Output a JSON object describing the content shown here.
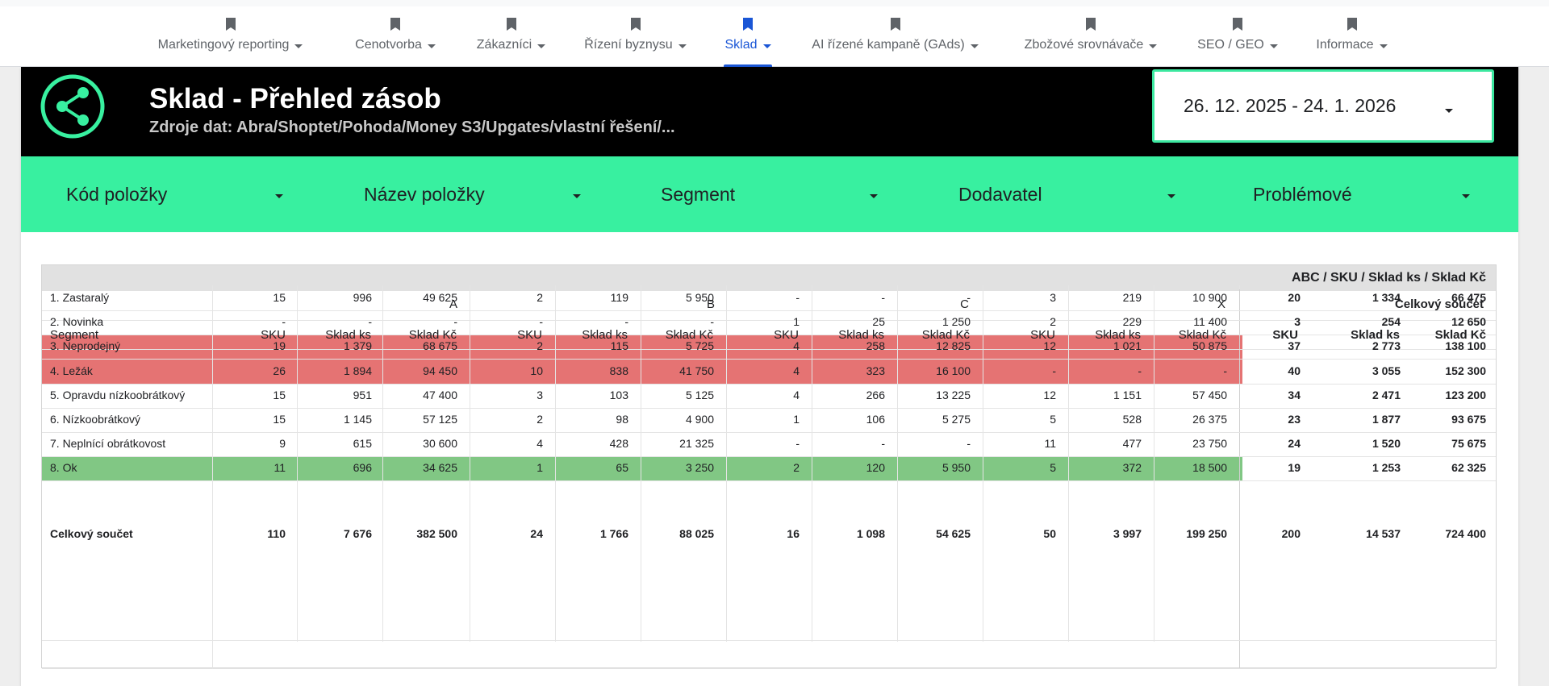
{
  "nav": {
    "items": [
      {
        "label": "Marketingový reporting"
      },
      {
        "label": "Cenotvorba"
      },
      {
        "label": "Zákazníci"
      },
      {
        "label": "Řízení byznysu"
      },
      {
        "label": "Sklad",
        "active": true
      },
      {
        "label": "AI řízené kampaně (GAds)"
      },
      {
        "label": "Zbožové srovnávače"
      },
      {
        "label": "SEO / GEO"
      },
      {
        "label": "Informace"
      }
    ]
  },
  "header": {
    "title": "Sklad - Přehled zásob",
    "subtitle": "Zdroje dat: Abra/Shoptet/Pohoda/Money S3/Upgates/vlastní řešení/...",
    "date_range": "26. 12. 2025 - 24. 1. 2026"
  },
  "filters": [
    {
      "label": "Kód položky"
    },
    {
      "label": "Název položky"
    },
    {
      "label": "Segment"
    },
    {
      "label": "Dodavatel"
    },
    {
      "label": "Problémové"
    }
  ],
  "colors": {
    "accent_green": "#38f0a0",
    "nav_active": "#1a56d6",
    "row_problem": "#e57373",
    "row_ok": "#81c784"
  },
  "table": {
    "title": "ABC / SKU / Sklad ks / Sklad Kč",
    "groups": [
      "A",
      "B",
      "C",
      "X",
      "Celkový součet"
    ],
    "row_header": "Segment",
    "sub_headers": [
      "SKU",
      "Sklad ks",
      "Sklad Kč"
    ],
    "rows": [
      {
        "segment": "1. Zastaralý",
        "highlight": "none",
        "values": [
          "15",
          "996",
          "49 625",
          "2",
          "119",
          "5 950",
          "-",
          "-",
          "-",
          "3",
          "219",
          "10 900"
        ],
        "totals": [
          "20",
          "1 334",
          "66 475"
        ]
      },
      {
        "segment": "2. Novinka",
        "highlight": "none",
        "values": [
          "-",
          "-",
          "-",
          "-",
          "-",
          "-",
          "1",
          "25",
          "1 250",
          "2",
          "229",
          "11 400"
        ],
        "totals": [
          "3",
          "254",
          "12 650"
        ]
      },
      {
        "segment": "3. Neprodejný",
        "highlight": "red",
        "values": [
          "19",
          "1 379",
          "68 675",
          "2",
          "115",
          "5 725",
          "4",
          "258",
          "12 825",
          "12",
          "1 021",
          "50 875"
        ],
        "totals": [
          "37",
          "2 773",
          "138 100"
        ]
      },
      {
        "segment": "4. Ležák",
        "highlight": "red",
        "values": [
          "26",
          "1 894",
          "94 450",
          "10",
          "838",
          "41 750",
          "4",
          "323",
          "16 100",
          "-",
          "-",
          "-"
        ],
        "totals": [
          "40",
          "3 055",
          "152 300"
        ]
      },
      {
        "segment": "5. Opravdu nízkoobrátkový",
        "highlight": "none",
        "values": [
          "15",
          "951",
          "47 400",
          "3",
          "103",
          "5 125",
          "4",
          "266",
          "13 225",
          "12",
          "1 151",
          "57 450"
        ],
        "totals": [
          "34",
          "2 471",
          "123 200"
        ]
      },
      {
        "segment": "6. Nízkoobrátkový",
        "highlight": "none",
        "values": [
          "15",
          "1 145",
          "57 125",
          "2",
          "98",
          "4 900",
          "1",
          "106",
          "5 275",
          "5",
          "528",
          "26 375"
        ],
        "totals": [
          "23",
          "1 877",
          "93 675"
        ]
      },
      {
        "segment": "7. Neplnící obrátkovost",
        "highlight": "none",
        "values": [
          "9",
          "615",
          "30 600",
          "4",
          "428",
          "21 325",
          "-",
          "-",
          "-",
          "11",
          "477",
          "23 750"
        ],
        "totals": [
          "24",
          "1 520",
          "75 675"
        ]
      },
      {
        "segment": "8. Ok",
        "highlight": "green",
        "values": [
          "11",
          "696",
          "34 625",
          "1",
          "65",
          "3 250",
          "2",
          "120",
          "5 950",
          "5",
          "372",
          "18 500"
        ],
        "totals": [
          "19",
          "1 253",
          "62 325"
        ]
      }
    ],
    "grand_total": {
      "label": "Celkový součet",
      "values": [
        "110",
        "7 676",
        "382 500",
        "24",
        "1 766",
        "88 025",
        "16",
        "1 098",
        "54 625",
        "50",
        "3 997",
        "199 250"
      ],
      "totals": [
        "200",
        "14 537",
        "724 400"
      ]
    }
  }
}
